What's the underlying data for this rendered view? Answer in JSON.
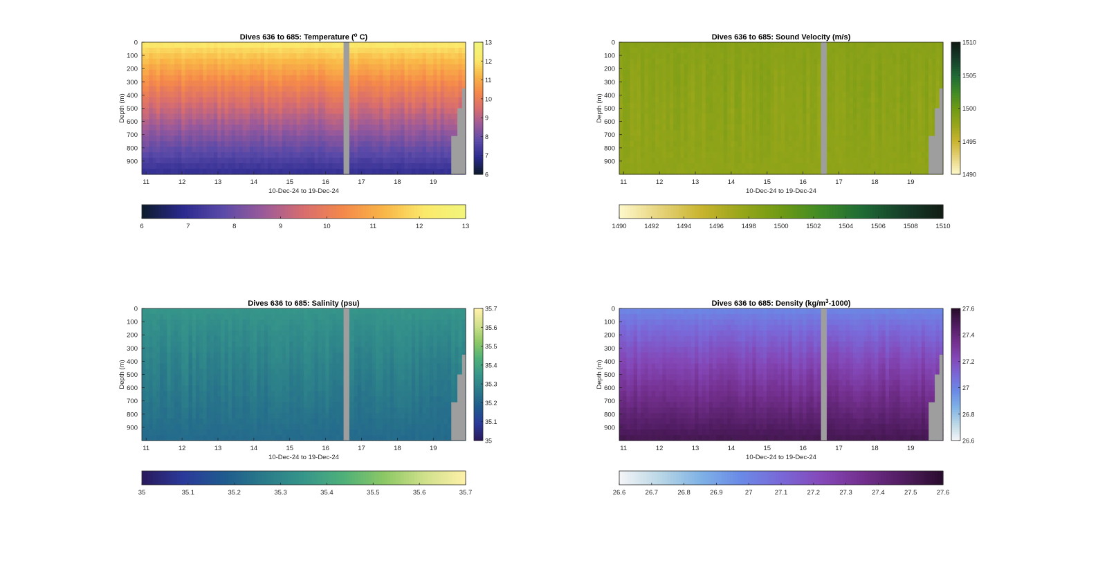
{
  "chart_data": [
    {
      "type": "heatmap",
      "title": "Dives 636 to 685: Temperature (",
      "title_sup": "o",
      "title_suffix": " C)",
      "xlabel": "10-Dec-24 to 19-Dec-24",
      "ylabel": "Depth (m)",
      "xlim": [
        10.88,
        19.9
      ],
      "x_ticks": [
        11,
        12,
        13,
        14,
        15,
        16,
        17,
        18,
        19
      ],
      "ylim": [
        0,
        1000
      ],
      "y_ticks": [
        0,
        100,
        200,
        300,
        400,
        500,
        600,
        700,
        800,
        900
      ],
      "clim": [
        6,
        13
      ],
      "colorbar_ticks": [
        6,
        7,
        8,
        9,
        10,
        11,
        12,
        13
      ],
      "horizontal_colorbar_ticks": [
        6,
        7,
        8,
        9,
        10,
        11,
        12,
        13
      ],
      "colormap": [
        "#0d1b2e",
        "#2b2a8f",
        "#5b4aa8",
        "#9b5a9a",
        "#d86d6e",
        "#f5894a",
        "#f9b647",
        "#fbe96b",
        "#f2f57a"
      ],
      "surface_value": 12.3,
      "deep_value": 7.0,
      "no_data_color": "#9e9e9e",
      "gap_x": [
        16.5,
        16.66
      ],
      "data_end_x": 19.5,
      "bottom_profile": [
        [
          19.5,
          710
        ],
        [
          19.67,
          500
        ],
        [
          19.8,
          350
        ]
      ]
    },
    {
      "type": "heatmap",
      "title": "Dives 636 to 685: Sound Velocity (m/s)",
      "title_sup": "",
      "title_suffix": "",
      "xlabel": "10-Dec-24 to 19-Dec-24",
      "ylabel": "Depth (m)",
      "xlim": [
        10.88,
        19.9
      ],
      "x_ticks": [
        11,
        12,
        13,
        14,
        15,
        16,
        17,
        18,
        19
      ],
      "ylim": [
        0,
        1000
      ],
      "y_ticks": [
        0,
        100,
        200,
        300,
        400,
        500,
        600,
        700,
        800,
        900
      ],
      "clim": [
        1490,
        1510
      ],
      "colorbar_ticks": [
        1490,
        1495,
        1500,
        1505,
        1510
      ],
      "horizontal_colorbar_ticks": [
        1490,
        1492,
        1494,
        1496,
        1498,
        1500,
        1502,
        1504,
        1506,
        1508,
        1510
      ],
      "colormap": [
        "#fdf7c8",
        "#e6d27a",
        "#c9b42e",
        "#98a61a",
        "#6f9a14",
        "#3f8a25",
        "#1f6b35",
        "#16402a",
        "#111d15"
      ],
      "surface_value": 1498.5,
      "deep_value": 1498.0,
      "no_data_color": "#9e9e9e",
      "gap_x": [
        16.5,
        16.66
      ],
      "data_end_x": 19.5,
      "bottom_profile": [
        [
          19.5,
          710
        ],
        [
          19.67,
          500
        ],
        [
          19.8,
          350
        ]
      ]
    },
    {
      "type": "heatmap",
      "title": "Dives 636 to 685: Salinity (psu)",
      "title_sup": "",
      "title_suffix": "",
      "xlabel": "10-Dec-24 to 19-Dec-24",
      "ylabel": "Depth (m)",
      "xlim": [
        10.88,
        19.9
      ],
      "x_ticks": [
        11,
        12,
        13,
        14,
        15,
        16,
        17,
        18,
        19
      ],
      "ylim": [
        0,
        1000
      ],
      "y_ticks": [
        0,
        100,
        200,
        300,
        400,
        500,
        600,
        700,
        800,
        900
      ],
      "clim": [
        35,
        35.7
      ],
      "colorbar_ticks": [
        35,
        35.1,
        35.2,
        35.3,
        35.4,
        35.5,
        35.6,
        35.7
      ],
      "horizontal_colorbar_ticks": [
        35,
        35.1,
        35.2,
        35.3,
        35.4,
        35.5,
        35.6,
        35.7
      ],
      "colormap": [
        "#2a1a5e",
        "#2a3a9a",
        "#1f5a8e",
        "#2a7a8a",
        "#36968a",
        "#4fb07a",
        "#8cc865",
        "#cfe08a",
        "#fdf0a8"
      ],
      "surface_value": 35.35,
      "deep_value": 35.22,
      "no_data_color": "#9e9e9e",
      "gap_x": [
        16.5,
        16.66
      ],
      "data_end_x": 19.5,
      "bottom_profile": [
        [
          19.5,
          710
        ],
        [
          19.67,
          500
        ],
        [
          19.8,
          350
        ]
      ]
    },
    {
      "type": "heatmap",
      "title": "Dives 636 to 685: Density (kg/m",
      "title_sup": "3",
      "title_suffix": "-1000)",
      "xlabel": "10-Dec-24 to 19-Dec-24",
      "ylabel": "Depth (m)",
      "xlim": [
        10.88,
        19.9
      ],
      "x_ticks": [
        11,
        12,
        13,
        14,
        15,
        16,
        17,
        18,
        19
      ],
      "ylim": [
        0,
        1000
      ],
      "y_ticks": [
        0,
        100,
        200,
        300,
        400,
        500,
        600,
        700,
        800,
        900
      ],
      "clim": [
        26.6,
        27.6
      ],
      "colorbar_ticks": [
        26.6,
        26.8,
        27,
        27.2,
        27.4,
        27.6
      ],
      "colorbar_tick_labels": [
        "26.6",
        "26.8",
        "27",
        "27.2",
        "27.4",
        "27.6"
      ],
      "horizontal_colorbar_ticks": [
        26.6,
        26.7,
        26.8,
        26.9,
        27,
        27.1,
        27.2,
        27.3,
        27.4,
        27.5,
        27.6
      ],
      "horizontal_colorbar_tick_labels": [
        "26.6",
        "26.7",
        "26.8",
        "26.9",
        "27",
        "27.1",
        "27.2",
        "27.3",
        "27.4",
        "27.5",
        "27.6"
      ],
      "colormap": [
        "#f2f4f6",
        "#b9d6e6",
        "#7fb2e6",
        "#6a8ae6",
        "#7a68d8",
        "#8448b8",
        "#74308f",
        "#521d63",
        "#2a0d2e"
      ],
      "surface_value": 26.98,
      "deep_value": 27.52,
      "no_data_color": "#9e9e9e",
      "gap_x": [
        16.5,
        16.66
      ],
      "data_end_x": 19.5,
      "bottom_profile": [
        [
          19.5,
          710
        ],
        [
          19.67,
          500
        ],
        [
          19.8,
          350
        ]
      ]
    }
  ]
}
